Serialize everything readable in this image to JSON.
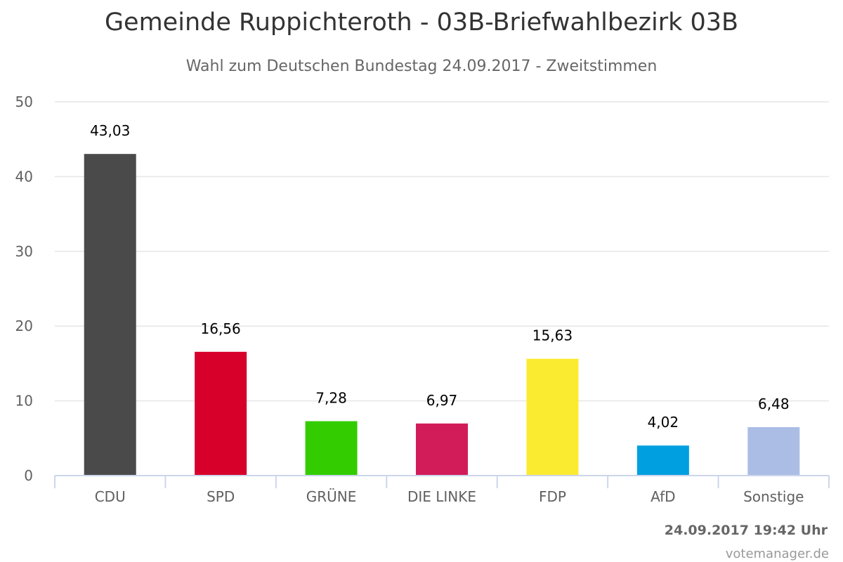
{
  "title": "Gemeinde Ruppichteroth - 03B-Briefwahlbezirk 03B",
  "subtitle": "Wahl zum Deutschen Bundestag 24.09.2017 - Zweitstimmen",
  "timestamp": "24.09.2017 19:42 Uhr",
  "credit": "votemanager.de",
  "chart_data": {
    "type": "bar",
    "title": "Gemeinde Ruppichteroth - 03B-Briefwahlbezirk 03B",
    "subtitle": "Wahl zum Deutschen Bundestag 24.09.2017 - Zweitstimmen",
    "categories": [
      "CDU",
      "SPD",
      "GRÜNE",
      "DIE LINKE",
      "FDP",
      "AfD",
      "Sonstige"
    ],
    "values": [
      43.03,
      16.56,
      7.28,
      6.97,
      15.63,
      4.02,
      6.48
    ],
    "data_labels": [
      "43,03",
      "16,56",
      "7,28",
      "6,97",
      "15,63",
      "4,02",
      "6,48"
    ],
    "colors": [
      "#4a4a4a",
      "#d6002b",
      "#33cc00",
      "#d21c5a",
      "#faeb30",
      "#009fe0",
      "#abbde5"
    ],
    "yticks": [
      0,
      10,
      20,
      30,
      40,
      50
    ],
    "ylim": [
      0,
      50
    ],
    "grid": true,
    "legend": "none"
  }
}
